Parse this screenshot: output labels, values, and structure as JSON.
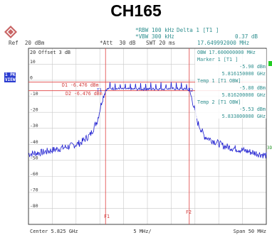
{
  "title": "CH165",
  "header": {
    "ref": "Ref  20 dBm",
    "att": "*Att  30 dB",
    "rbw": "*RBW 100 kHz",
    "vbw": "*VBW 300 kHz",
    "swt": "SWT 20 ms",
    "delta_label": "Delta 1 [T1 ]",
    "delta_value": "0.37 dB",
    "delta_freq": "17.649992000 MHz"
  },
  "side_labels": {
    "trace_mode_1": "1 PK",
    "trace_mode_2": "VIEW",
    "right_tag": "3D"
  },
  "plot": {
    "offset_text": "Offset  3 dB",
    "top_level": "20",
    "y_ticks": [
      "10",
      "0",
      "-10",
      "-20",
      "-30",
      "-40",
      "-50",
      "-60",
      "-70",
      "-80"
    ],
    "d1_label": "D1 -6.476 dBm",
    "d2_label": "D2 -6.476 dBm",
    "f1_label": "F1",
    "f2_label": "F2",
    "t1_label": "T1",
    "t2_label": "T2",
    "center": "Center 5.825 GHz",
    "per_div": "5 MHz/",
    "span": "Span 50 MHz"
  },
  "marker_info": {
    "obw": "OBW 17.600000000 MHz",
    "marker1": "Marker 1 [T1 ]",
    "marker1_level": "-5.90 dBm",
    "marker1_freq": "5.816150000 GHz",
    "temp1": "Temp 1 [T1 OBW]",
    "temp1_level": "-5.80 dBm",
    "temp1_freq": "5.816200000 GHz",
    "temp2": "Temp 2 [T1 OBW]",
    "temp2_level": "-5.53 dBm",
    "temp2_freq": "5.833800000 GHz"
  },
  "colors": {
    "trace": "#1f1fd0",
    "display_line": "#e04040",
    "grid": "#c8c8c8",
    "frame": "#404040",
    "info_text": "#2f8f8f"
  },
  "chart_data": {
    "type": "line",
    "x_unit": "GHz",
    "x_range": [
      5.8,
      5.85
    ],
    "ylim": [
      -90,
      20
    ],
    "grid": true,
    "display_lines_dbm": [
      -6.476,
      -6.476
    ],
    "frequency_lines_ghz": [
      5.8162,
      5.8338
    ],
    "series": [
      {
        "x": [
          5.8,
          5.803,
          5.806,
          5.809,
          5.811,
          5.813,
          5.8145,
          5.8155,
          5.8162,
          5.817,
          5.82,
          5.825,
          5.83,
          5.833,
          5.8338,
          5.8345,
          5.8355,
          5.837,
          5.839,
          5.841,
          5.844,
          5.847,
          5.85
        ],
        "y": [
          -46,
          -45,
          -43,
          -41,
          -39,
          -34,
          -25,
          -12,
          -6,
          -5,
          -5.5,
          -5.5,
          -5.2,
          -5.5,
          -6,
          -13,
          -26,
          -35,
          -38,
          -41,
          -43,
          -45,
          -47
        ]
      }
    ]
  }
}
